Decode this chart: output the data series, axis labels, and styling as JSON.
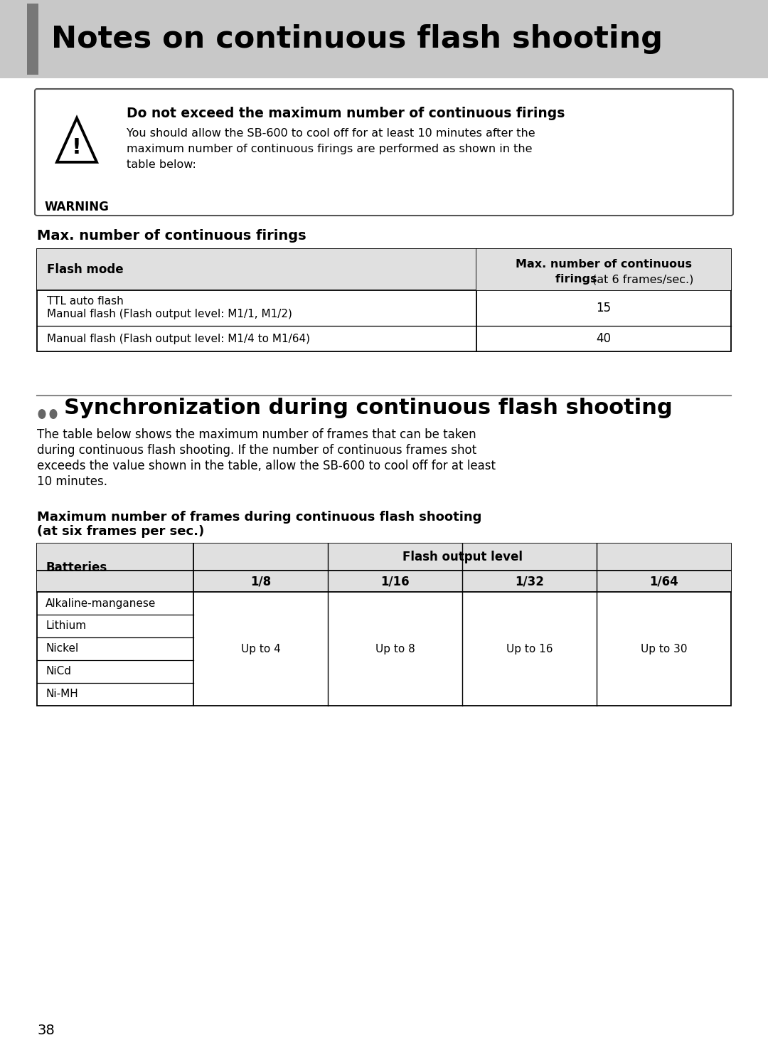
{
  "page_title": "Notes on continuous flash shooting",
  "page_number": "38",
  "header_bg": "#c8c8c8",
  "header_strip_color": "#777777",
  "warning_title": "Do not exceed the maximum number of continuous firings",
  "warning_body": "You should allow the SB-600 to cool off for at least 10 minutes after the\nmaximum number of continuous firings are performed as shown in the\ntable below:",
  "warning_label": "WARNING",
  "table1_title": "Max. number of continuous firings",
  "table1_header_col1": "Flash mode",
  "table1_header_col2_bold": "Max. number of continuous\nfirings ",
  "table1_header_col2_normal": "(at 6 frames/sec.)",
  "table1_row1_col1_line1": "TTL auto flash",
  "table1_row1_col1_line2": "Manual flash (Flash output level: M1/1, M1/2)",
  "table1_row1_col2": "15",
  "table1_row2_col1": "Manual flash (Flash output level: M1/4 to M1/64)",
  "table1_row2_col2": "40",
  "section2_title": "Synchronization during continuous flash shooting",
  "section2_body_line1": "The table below shows the maximum number of frames that can be taken",
  "section2_body_line2": "during continuous flash shooting. If the number of continuous frames shot",
  "section2_body_line3": "exceeds the value shown in the table, allow the SB-600 to cool off for at least",
  "section2_body_line4": "10 minutes.",
  "table2_title_line1": "Maximum number of frames during continuous flash shooting",
  "table2_title_line2": "(at six frames per sec.)",
  "table2_col_header_left": "Batteries",
  "table2_col_header_mid": "Flash output level",
  "table2_sub_headers": [
    "1/8",
    "1/16",
    "1/32",
    "1/64"
  ],
  "table2_battery_rows": [
    "Alkaline-manganese",
    "Lithium",
    "Nickel",
    "NiCd",
    "Ni-MH"
  ],
  "table2_values": [
    "Up to 4",
    "Up to 8",
    "Up to 16",
    "Up to 30"
  ],
  "bg_color": "#ffffff",
  "text_color": "#000000",
  "table_header_bg": "#e0e0e0"
}
